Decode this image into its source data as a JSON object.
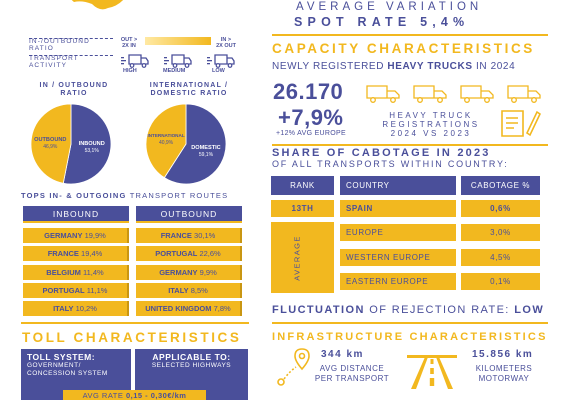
{
  "legend": {
    "ratio_label_line1": "IN-/OUTBOUND",
    "ratio_label_line2": "RATIO",
    "activity_label_line1": "TRANSPORT",
    "activity_label_line2": "ACTIVITY",
    "out_2x_line1": "OUT >",
    "out_2x_line2": "2X IN",
    "in_2x_line1": "IN >",
    "in_2x_line2": "2X OUT",
    "activity_high": "HIGH",
    "activity_medium": "MEDIUM",
    "activity_low": "LOW",
    "gradient_colors": [
      "#ffe9a3",
      "#f2b81f"
    ]
  },
  "ratios": {
    "inout_title_line1": "IN / OUTBOUND",
    "inout_title_line2": "RATIO",
    "intdom_title_line1": "INTERNATIONAL /",
    "intdom_title_line2": "DOMESTIC RATIO"
  },
  "chart_data": [
    {
      "type": "pie",
      "title": "IN / OUTBOUND RATIO",
      "categories": [
        "INBOUND",
        "OUTBOUND"
      ],
      "values": [
        53.1,
        46.9
      ],
      "labels": [
        "53,1%",
        "46,9%"
      ],
      "colors": [
        "#4a4f9a",
        "#f2b81f"
      ]
    },
    {
      "type": "pie",
      "title": "INTERNATIONAL / DOMESTIC RATIO",
      "categories": [
        "DOMESTIC",
        "INTERNATIONAL"
      ],
      "values": [
        59.1,
        40.9
      ],
      "labels": [
        "59,1%",
        "40,9%"
      ],
      "colors": [
        "#4a4f9a",
        "#f2b81f"
      ]
    }
  ],
  "routes": {
    "title_bold": "TOPS IN- & OUTGOING",
    "title_rest": "TRANSPORT ROUTES",
    "inbound_header": "INBOUND",
    "outbound_header": "OUTBOUND",
    "inbound": [
      {
        "country": "GERMANY",
        "pct": "19,9%"
      },
      {
        "country": "FRANCE",
        "pct": "19,4%"
      },
      {
        "country": "BELGIUM",
        "pct": "11,4%"
      },
      {
        "country": "PORTUGAL",
        "pct": "11,1%"
      },
      {
        "country": "ITALY",
        "pct": "10,2%"
      }
    ],
    "outbound": [
      {
        "country": "FRANCE",
        "pct": "30,1%"
      },
      {
        "country": "PORTUGAL",
        "pct": "22,6%"
      },
      {
        "country": "GERMANY",
        "pct": "9,9%"
      },
      {
        "country": "ITALY",
        "pct": "8,5%"
      },
      {
        "country": "UNITED KINGDOM",
        "pct": "7,8%"
      }
    ]
  },
  "toll": {
    "title": "TOLL CHARACTERISTICS",
    "system_label": "TOLL SYSTEM:",
    "system_value_line1": "GOVERNMENT/",
    "system_value_line2": "CONCESSION SYSTEM",
    "applicable_label": "APPLICABLE TO:",
    "applicable_value": "SELECTED HIGHWAYS",
    "avg_rate_prefix": "AVG RATE",
    "avg_rate_value": "0,15 - 0,30€/km"
  },
  "spot_rate": {
    "line1": "AVERAGE VARIATION",
    "line2": "SPOT RATE 5,4%"
  },
  "capacity": {
    "title": "CAPACITY CHARACTERISTICS",
    "subtitle_pre": "NEWLY REGISTERED",
    "subtitle_bold": "HEAVY TRUCKS",
    "subtitle_post": "IN 2024",
    "registered_count": "26.170",
    "change_pct": "+7,9%",
    "avg_europe": "+12% AVG EUROPE",
    "desc_line1": "HEAVY TRUCK",
    "desc_line2": "REGISTRATIONS",
    "desc_line3": "2024 VS 2023"
  },
  "cabotage": {
    "title_line1": "SHARE OF CABOTAGE IN 2023",
    "title_line2": "OF ALL TRANSPORTS WITHIN COUNTRY:",
    "headers": [
      "RANK",
      "COUNTRY",
      "CABOTAGE %"
    ],
    "main_row": {
      "rank": "13TH",
      "country": "SPAIN",
      "pct": "0,6%"
    },
    "avg_label": "AVERAGE",
    "avg_rows": [
      {
        "country": "EUROPE",
        "pct": "3,0%"
      },
      {
        "country": "WESTERN EUROPE",
        "pct": "4,5%"
      },
      {
        "country": "EASTERN EUROPE",
        "pct": "0,1%"
      }
    ]
  },
  "rejection": {
    "label": "FLUCTUATION",
    "middle": "OF REJECTION RATE:",
    "value": "LOW"
  },
  "infrastructure": {
    "title": "INFRASTRUCTURE CHARACTERISTICS",
    "avg_distance": "344 km",
    "avg_distance_label_line1": "AVG DISTANCE",
    "avg_distance_label_line2": "PER TRANSPORT",
    "motorway": "15.856 km",
    "motorway_label_line1": "KILOMETERS",
    "motorway_label_line2": "MOTORWAY"
  },
  "colors": {
    "navy": "#4a4f9a",
    "gold": "#f2b81f"
  }
}
